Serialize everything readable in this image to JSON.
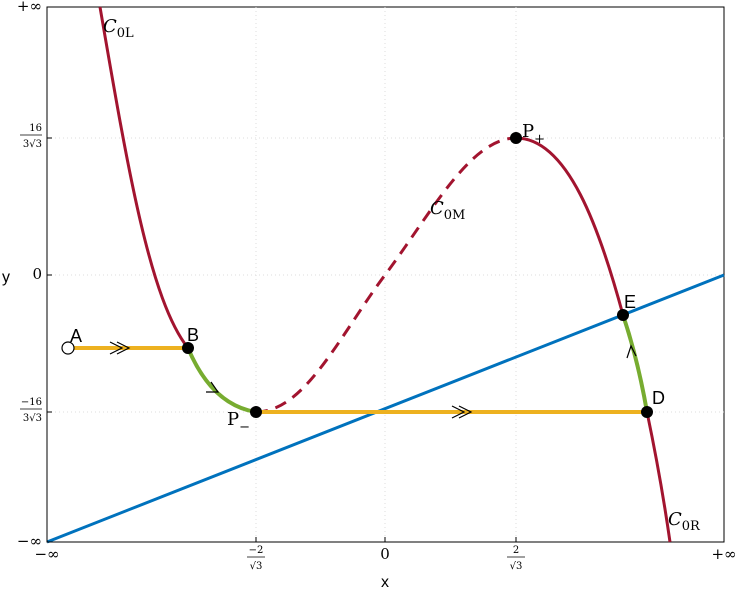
{
  "axes": {
    "x_label": "x",
    "y_label": "y",
    "x_ticks": [
      {
        "text": "−∞"
      },
      {
        "num": "−2",
        "den": "√3"
      },
      {
        "text": "0"
      },
      {
        "num": "2",
        "den": "√3"
      },
      {
        "text": "+∞"
      }
    ],
    "y_ticks": [
      {
        "text": "+∞"
      },
      {
        "num": "16",
        "den": "3√3"
      },
      {
        "text": "0"
      },
      {
        "num": "−16",
        "den": "3√3"
      },
      {
        "text": "−∞"
      }
    ]
  },
  "curves": {
    "c0l": {
      "main": "C",
      "sub": "0L"
    },
    "c0m": {
      "main": "C",
      "sub": "0M"
    },
    "c0r": {
      "main": "C",
      "sub": "0R"
    }
  },
  "points": {
    "a": "A",
    "b": "B",
    "d": "D",
    "e": "E",
    "p_plus": {
      "main": "P",
      "sub": "+"
    },
    "p_minus": {
      "main": "P",
      "sub": "−"
    }
  }
}
